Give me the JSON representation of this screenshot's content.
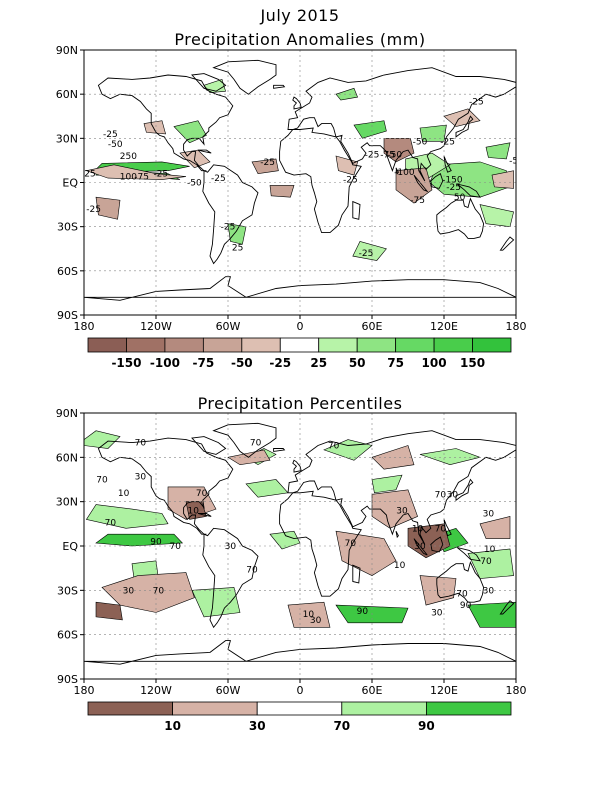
{
  "header": {
    "month_title": "July 2015"
  },
  "chart_data": [
    {
      "type": "heatmap",
      "title": "Precipitation Anomalies (mm)",
      "x_ticks": [
        "180",
        "120W",
        "60W",
        "0",
        "60E",
        "120E",
        "180"
      ],
      "y_ticks": [
        "90N",
        "60N",
        "30N",
        "EQ",
        "30S",
        "60S",
        "90S"
      ],
      "grid": true,
      "colorbar": {
        "labels": [
          "-150",
          "-100",
          "-75",
          "-50",
          "-25",
          "25",
          "50",
          "75",
          "100",
          "150"
        ],
        "colors": [
          "#8b5e55",
          "#a07165",
          "#b48a7e",
          "#c8a497",
          "#ddbfb2",
          "#ffffff",
          "#b7f3a8",
          "#8ee483",
          "#66d964",
          "#49cd4b",
          "#33c23c"
        ]
      },
      "contour_labels": [
        {
          "text": "-25",
          "lon": 147,
          "lat": 55
        },
        {
          "text": "-25",
          "lon": 123,
          "lat": 28
        },
        {
          "text": "-50",
          "lon": 100,
          "lat": 28
        },
        {
          "text": "-50",
          "lon": 79,
          "lat": 19
        },
        {
          "text": "-75",
          "lon": 73,
          "lat": 19
        },
        {
          "text": "-25",
          "lon": 60,
          "lat": 19
        },
        {
          "text": "-100",
          "lon": 87,
          "lat": 7
        },
        {
          "text": "-150",
          "lon": 127,
          "lat": 2
        },
        {
          "text": "-75",
          "lon": 98,
          "lat": -12
        },
        {
          "text": "-25",
          "lon": 128,
          "lat": -3
        },
        {
          "text": "50",
          "lon": 133,
          "lat": -10
        },
        {
          "text": "-5",
          "lon": 178,
          "lat": 15
        },
        {
          "text": "-25",
          "lon": -158,
          "lat": 33
        },
        {
          "text": "-50",
          "lon": -154,
          "lat": 26
        },
        {
          "text": "250",
          "lon": -143,
          "lat": 18
        },
        {
          "text": "100",
          "lon": -143,
          "lat": 4
        },
        {
          "text": "-75",
          "lon": -132,
          "lat": 4
        },
        {
          "text": "-25",
          "lon": -116,
          "lat": 6
        },
        {
          "text": "-50",
          "lon": -88,
          "lat": 0
        },
        {
          "text": "-25",
          "lon": -68,
          "lat": 3
        },
        {
          "text": "-25",
          "lon": -27,
          "lat": 14
        },
        {
          "text": "-25",
          "lon": 42,
          "lat": 2
        },
        {
          "text": "-25",
          "lon": -172,
          "lat": -18
        },
        {
          "text": "-25",
          "lon": -60,
          "lat": -30
        },
        {
          "text": "25",
          "lon": -52,
          "lat": -44
        },
        {
          "text": "-25",
          "lon": 55,
          "lat": -48
        },
        {
          "text": "25",
          "lon": -175,
          "lat": 6
        }
      ]
    },
    {
      "type": "heatmap",
      "title": "Precipitation Percentiles",
      "x_ticks": [
        "180",
        "120W",
        "60W",
        "0",
        "60E",
        "120E",
        "180"
      ],
      "y_ticks": [
        "90N",
        "60N",
        "30N",
        "EQ",
        "30S",
        "60S",
        "90S"
      ],
      "grid": true,
      "colorbar": {
        "labels": [
          "10",
          "30",
          "70",
          "90"
        ],
        "colors": [
          "#8c6155",
          "#d6b2a6",
          "#ffffff",
          "#adf1a1",
          "#3ec843"
        ]
      },
      "contour_labels": [
        {
          "text": "70",
          "lon": -133,
          "lat": 70
        },
        {
          "text": "70",
          "lon": -37,
          "lat": 70
        },
        {
          "text": "70",
          "lon": 28,
          "lat": 68
        },
        {
          "text": "70",
          "lon": -165,
          "lat": 45
        },
        {
          "text": "30",
          "lon": -133,
          "lat": 47
        },
        {
          "text": "10",
          "lon": -147,
          "lat": 36
        },
        {
          "text": "10",
          "lon": -89,
          "lat": 24
        },
        {
          "text": "70",
          "lon": -82,
          "lat": 36
        },
        {
          "text": "70",
          "lon": -158,
          "lat": 16
        },
        {
          "text": "90",
          "lon": -120,
          "lat": 3
        },
        {
          "text": "70",
          "lon": -104,
          "lat": 0
        },
        {
          "text": "30",
          "lon": -58,
          "lat": 0
        },
        {
          "text": "70",
          "lon": 42,
          "lat": 2
        },
        {
          "text": "30",
          "lon": 85,
          "lat": 24
        },
        {
          "text": "10",
          "lon": 98,
          "lat": 12
        },
        {
          "text": "70",
          "lon": 117,
          "lat": 12
        },
        {
          "text": "30",
          "lon": 127,
          "lat": 35
        },
        {
          "text": "30",
          "lon": 157,
          "lat": 22
        },
        {
          "text": "70",
          "lon": 117,
          "lat": 35
        },
        {
          "text": "30",
          "lon": 100,
          "lat": 0
        },
        {
          "text": "10",
          "lon": 83,
          "lat": -13
        },
        {
          "text": "10",
          "lon": 158,
          "lat": -2
        },
        {
          "text": "70",
          "lon": 155,
          "lat": -10
        },
        {
          "text": "70",
          "lon": 135,
          "lat": -32
        },
        {
          "text": "90",
          "lon": 138,
          "lat": -40
        },
        {
          "text": "30",
          "lon": 114,
          "lat": -45
        },
        {
          "text": "30",
          "lon": 157,
          "lat": -30
        },
        {
          "text": "90",
          "lon": 52,
          "lat": -44
        },
        {
          "text": "30",
          "lon": -143,
          "lat": -30
        },
        {
          "text": "70",
          "lon": -118,
          "lat": -30
        },
        {
          "text": "70",
          "lon": -40,
          "lat": -16
        },
        {
          "text": "10",
          "lon": 7,
          "lat": -46
        },
        {
          "text": "30",
          "lon": 13,
          "lat": -50
        }
      ]
    }
  ]
}
